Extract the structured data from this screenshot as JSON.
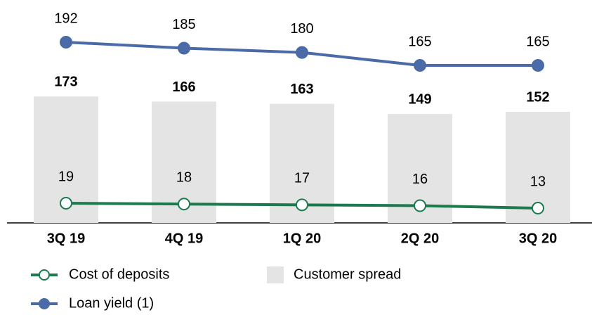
{
  "chart_data": {
    "type": "bar-line",
    "categories": [
      "3Q 19",
      "4Q 19",
      "1Q 20",
      "2Q 20",
      "3Q 20"
    ],
    "ylim": [
      0,
      305
    ],
    "series": [
      {
        "name": "Customer spread",
        "type": "bar",
        "color": "#e4e4e4",
        "values": [
          173,
          166,
          163,
          149,
          152
        ]
      },
      {
        "name": "Loan yield (1)",
        "type": "line",
        "color": "#4a6ba8",
        "values": [
          192,
          185,
          180,
          165,
          165
        ],
        "ylim": [
          -18,
          241
        ]
      },
      {
        "name": "Cost of deposits",
        "type": "line",
        "color": "#1d7a4e",
        "marker": "open",
        "values": [
          19,
          18,
          17,
          16,
          13
        ],
        "ylim": [
          -5,
          267
        ]
      }
    ]
  }
}
